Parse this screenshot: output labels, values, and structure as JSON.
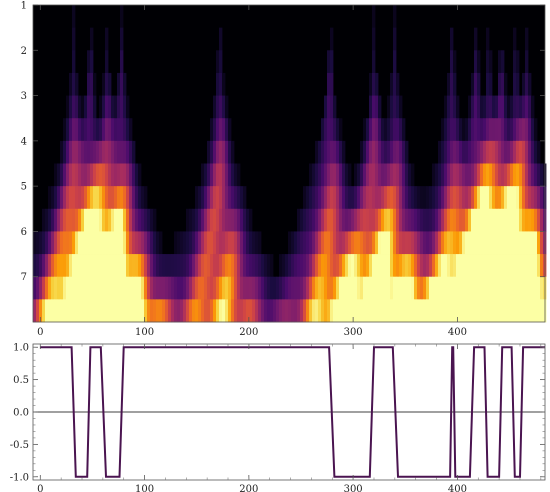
{
  "chart_data": [
    {
      "type": "heatmap",
      "title": "",
      "xlabel": "",
      "ylabel": "",
      "x_range": [
        -7,
        484
      ],
      "y_range": [
        1,
        8
      ],
      "y_reversed": true,
      "x_ticks": [
        0,
        100,
        200,
        300,
        400
      ],
      "y_ticks": [
        1,
        2,
        3,
        4,
        5,
        6,
        7
      ],
      "colormap": "inferno",
      "colormap_stops": [
        "#000004",
        "#1b0c41",
        "#4a0c6b",
        "#781c6d",
        "#a52c60",
        "#cf4446",
        "#ed6925",
        "#fb9b06",
        "#f7d13d",
        "#fcffa4"
      ],
      "scale_rows": 14,
      "peaks": [
        {
          "x": 32,
          "strength": 0.85
        },
        {
          "x": 48,
          "strength": 0.85
        },
        {
          "x": 64,
          "strength": 0.85
        },
        {
          "x": 78,
          "strength": 0.85
        },
        {
          "x": 172,
          "strength": 0.95
        },
        {
          "x": 278,
          "strength": 0.9
        },
        {
          "x": 320,
          "strength": 0.9
        },
        {
          "x": 340,
          "strength": 0.8
        },
        {
          "x": 395,
          "strength": 0.85
        },
        {
          "x": 418,
          "strength": 0.85
        },
        {
          "x": 430,
          "strength": 0.85
        },
        {
          "x": 442,
          "strength": 0.85
        },
        {
          "x": 456,
          "strength": 0.85
        },
        {
          "x": 466,
          "strength": 0.8
        }
      ]
    },
    {
      "type": "line",
      "title": "",
      "xlabel": "",
      "ylabel": "",
      "xlim": [
        -7,
        484
      ],
      "ylim": [
        -1.05,
        1.05
      ],
      "x_ticks": [
        0,
        100,
        200,
        300,
        400
      ],
      "y_ticks": [
        1.0,
        0.5,
        0.0,
        -0.5,
        -1.0
      ],
      "y_tick_labels": [
        "1.0",
        "0.5",
        "0.0",
        "-0.5",
        "-1.0"
      ],
      "zero_line": true,
      "color": "#4a1450",
      "series": [
        {
          "x": [
            0,
            30,
            34,
            45,
            48,
            58,
            63,
            76,
            80,
            172,
            176,
            277,
            282,
            316,
            320,
            338,
            343,
            393,
            395,
            396,
            398,
            412,
            416,
            426,
            429,
            440,
            443,
            452,
            455,
            460,
            463,
            468,
            472,
            484
          ],
          "y": [
            1,
            1,
            -1,
            -1,
            1,
            1,
            -1,
            -1,
            1,
            1,
            1,
            1,
            -1,
            -1,
            1,
            1,
            -1,
            -1,
            1,
            1,
            -1,
            -1,
            1,
            1,
            -1,
            -1,
            1,
            1,
            -1,
            -1,
            1,
            1,
            1,
            1
          ]
        }
      ]
    }
  ]
}
